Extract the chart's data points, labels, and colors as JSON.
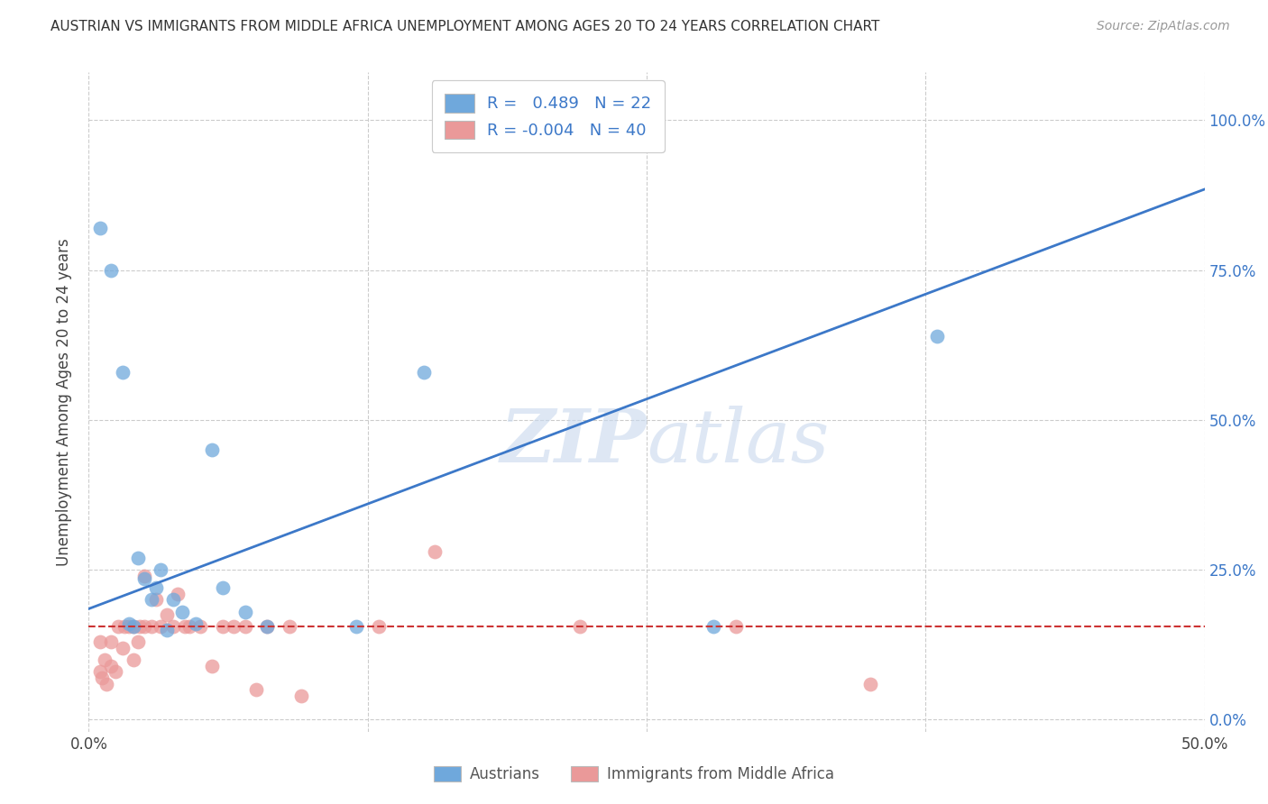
{
  "title": "AUSTRIAN VS IMMIGRANTS FROM MIDDLE AFRICA UNEMPLOYMENT AMONG AGES 20 TO 24 YEARS CORRELATION CHART",
  "source": "Source: ZipAtlas.com",
  "ylabel": "Unemployment Among Ages 20 to 24 years",
  "yticks": [
    "0.0%",
    "25.0%",
    "50.0%",
    "75.0%",
    "100.0%"
  ],
  "ytick_vals": [
    0.0,
    0.25,
    0.5,
    0.75,
    1.0
  ],
  "xlim": [
    0.0,
    0.5
  ],
  "ylim": [
    -0.02,
    1.08
  ],
  "legend_label1": "Austrians",
  "legend_label2": "Immigrants from Middle Africa",
  "R1": 0.489,
  "N1": 22,
  "R2": -0.004,
  "N2": 40,
  "blue_color": "#6fa8dc",
  "pink_color": "#ea9999",
  "blue_line_color": "#3c78c8",
  "pink_line_color": "#cc3333",
  "blue_scatter_x": [
    0.005,
    0.01,
    0.015,
    0.018,
    0.022,
    0.025,
    0.028,
    0.03,
    0.032,
    0.038,
    0.042,
    0.048,
    0.055,
    0.06,
    0.07,
    0.08,
    0.12,
    0.15,
    0.28,
    0.38,
    0.02,
    0.035
  ],
  "blue_scatter_y": [
    0.82,
    0.75,
    0.58,
    0.16,
    0.27,
    0.235,
    0.2,
    0.22,
    0.25,
    0.2,
    0.18,
    0.16,
    0.45,
    0.22,
    0.18,
    0.155,
    0.155,
    0.58,
    0.155,
    0.64,
    0.155,
    0.15
  ],
  "pink_scatter_x": [
    0.005,
    0.005,
    0.006,
    0.007,
    0.008,
    0.01,
    0.01,
    0.012,
    0.013,
    0.015,
    0.016,
    0.018,
    0.02,
    0.02,
    0.022,
    0.023,
    0.025,
    0.025,
    0.028,
    0.03,
    0.032,
    0.035,
    0.038,
    0.04,
    0.043,
    0.045,
    0.05,
    0.055,
    0.06,
    0.065,
    0.07,
    0.075,
    0.08,
    0.09,
    0.095,
    0.13,
    0.155,
    0.22,
    0.29,
    0.35
  ],
  "pink_scatter_y": [
    0.08,
    0.13,
    0.07,
    0.1,
    0.06,
    0.09,
    0.13,
    0.08,
    0.155,
    0.12,
    0.155,
    0.155,
    0.1,
    0.155,
    0.13,
    0.155,
    0.155,
    0.24,
    0.155,
    0.2,
    0.155,
    0.175,
    0.155,
    0.21,
    0.155,
    0.155,
    0.155,
    0.09,
    0.155,
    0.155,
    0.155,
    0.05,
    0.155,
    0.155,
    0.04,
    0.155,
    0.28,
    0.155,
    0.155,
    0.06
  ],
  "watermark_line1": "ZIP",
  "watermark_line2": "atlas",
  "blue_regression_x0": 0.0,
  "blue_regression_x1": 0.5,
  "blue_regression_y0": 0.185,
  "blue_regression_y1": 0.885,
  "pink_regression_y": 0.155,
  "background_color": "#ffffff",
  "grid_color": "#cccccc",
  "xtick_positions": [
    0.0,
    0.125,
    0.25,
    0.375,
    0.5
  ],
  "xtick_labels": [
    "0.0%",
    "",
    "",
    "",
    "50.0%"
  ]
}
